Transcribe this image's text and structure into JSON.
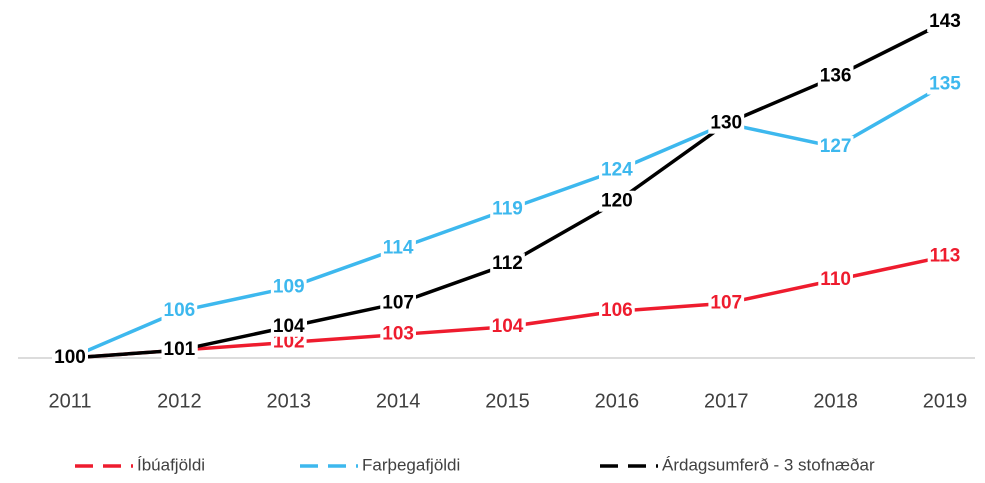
{
  "chart_data": {
    "type": "line",
    "categories": [
      "2011",
      "2012",
      "2013",
      "2014",
      "2015",
      "2016",
      "2017",
      "2018",
      "2019"
    ],
    "series": [
      {
        "name": "Íbúafjöldi",
        "color": "#ee1c2e",
        "values": [
          100,
          101,
          102,
          103,
          104,
          106,
          107,
          110,
          113
        ]
      },
      {
        "name": "Farþegafjöldi",
        "color": "#3db8ee",
        "values": [
          100,
          106,
          109,
          114,
          119,
          124,
          130,
          127,
          135
        ]
      },
      {
        "name": "Árdagsumferð - 3 stofnæðar",
        "color": "#000000",
        "values": [
          100,
          101,
          104,
          107,
          112,
          120,
          130,
          136,
          143
        ]
      }
    ],
    "ylim": [
      100,
      143
    ],
    "legend": "bottom"
  }
}
